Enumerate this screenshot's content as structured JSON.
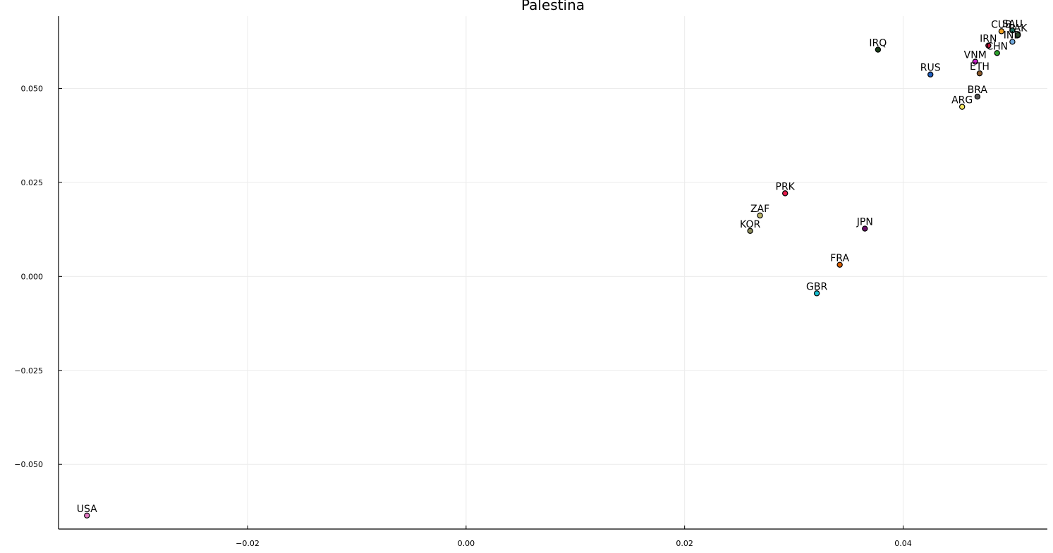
{
  "chart_data": {
    "type": "scatter",
    "title": "Palestina",
    "xlabel": "",
    "ylabel": "",
    "xlim": [
      -0.0373,
      0.0532
    ],
    "ylim": [
      -0.0672,
      0.0692
    ],
    "grid": true,
    "legend": "none",
    "x_ticks": [
      {
        "value": -0.02,
        "label": "−0.02"
      },
      {
        "value": 0.0,
        "label": "0.00"
      },
      {
        "value": 0.02,
        "label": "0.02"
      },
      {
        "value": 0.04,
        "label": "0.04"
      }
    ],
    "y_ticks": [
      {
        "value": -0.05,
        "label": "−0.050"
      },
      {
        "value": -0.025,
        "label": "−0.025"
      },
      {
        "value": 0.0,
        "label": "0.000"
      },
      {
        "value": 0.025,
        "label": "0.025"
      },
      {
        "value": 0.05,
        "label": "0.050"
      }
    ],
    "points": [
      {
        "label": "USA",
        "x": -0.0347,
        "y": -0.0636,
        "color": "#e377c2"
      },
      {
        "label": "GBR",
        "x": 0.0321,
        "y": -0.0045,
        "color": "#17becf"
      },
      {
        "label": "FRA",
        "x": 0.0342,
        "y": 0.0031,
        "color": "#d95f02"
      },
      {
        "label": "JPN",
        "x": 0.0365,
        "y": 0.0127,
        "color": "#6a0d6a"
      },
      {
        "label": "KOR",
        "x": 0.026,
        "y": 0.0121,
        "color": "#8c8c5a"
      },
      {
        "label": "ZAF",
        "x": 0.0269,
        "y": 0.0162,
        "color": "#bdb76b"
      },
      {
        "label": "PRK",
        "x": 0.0292,
        "y": 0.0221,
        "color": "#e6194b"
      },
      {
        "label": "ARG",
        "x": 0.0454,
        "y": 0.0451,
        "color": "#f5e663"
      },
      {
        "label": "BRA",
        "x": 0.0468,
        "y": 0.0478,
        "color": "#555555"
      },
      {
        "label": "ETH",
        "x": 0.047,
        "y": 0.054,
        "color": "#8b5a2b"
      },
      {
        "label": "RUS",
        "x": 0.0425,
        "y": 0.0537,
        "color": "#1f5fbf"
      },
      {
        "label": "VNM",
        "x": 0.0466,
        "y": 0.0571,
        "color": "#c71fc7"
      },
      {
        "label": "IRQ",
        "x": 0.0377,
        "y": 0.0603,
        "color": "#1a3d1a"
      },
      {
        "label": "CHN",
        "x": 0.0486,
        "y": 0.0594,
        "color": "#2ca02c"
      },
      {
        "label": "IRN",
        "x": 0.0478,
        "y": 0.0614,
        "color": "#c0143c"
      },
      {
        "label": "IND",
        "x": 0.05,
        "y": 0.0624,
        "color": "#6fa8dc"
      },
      {
        "label": "CUB",
        "x": 0.049,
        "y": 0.0652,
        "color": "#f0a020"
      },
      {
        "label": "SAU",
        "x": 0.05,
        "y": 0.0654,
        "color": "#1b6b5a"
      },
      {
        "label": "PAK",
        "x": 0.0505,
        "y": 0.0642,
        "color": "#2e4b2e"
      }
    ]
  }
}
